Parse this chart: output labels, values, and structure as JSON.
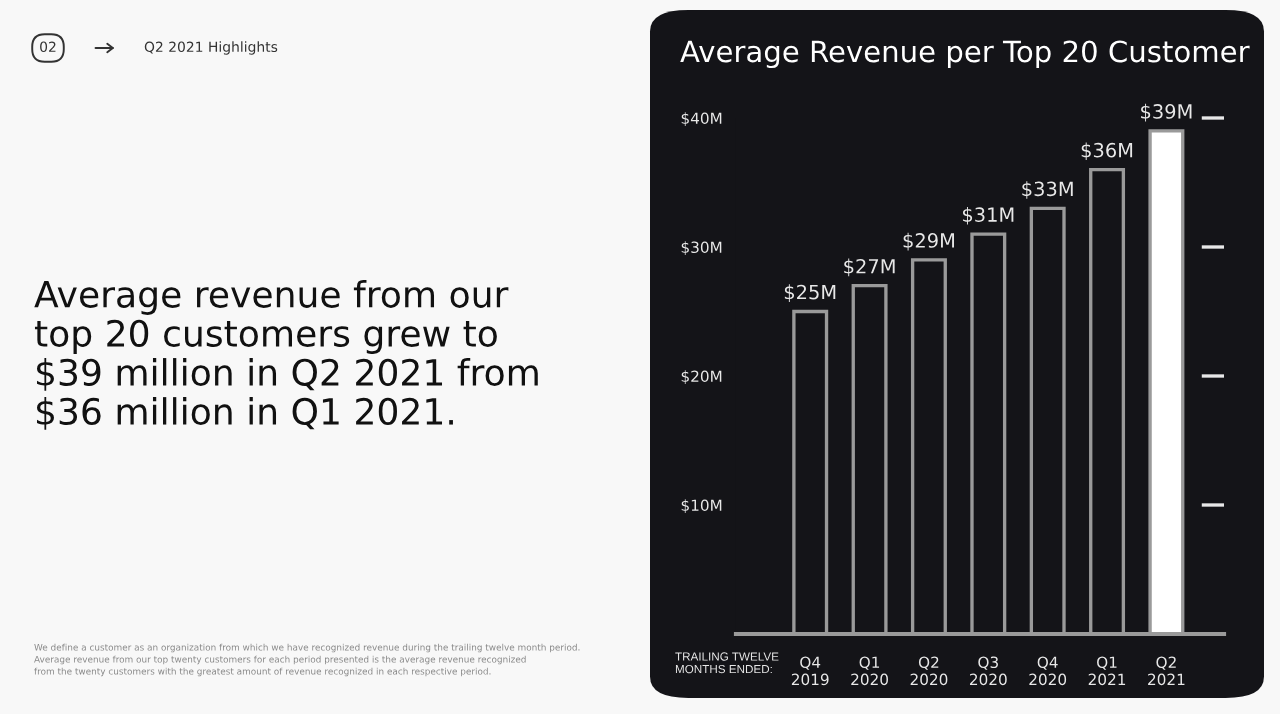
{
  "chart_data": {
    "type": "bar",
    "title": "Average Revenue per Top 20 Customer",
    "categories": [
      "Q4\n2019",
      "Q1\n2020",
      "Q2\n2020",
      "Q3\n2020",
      "Q4\n2020",
      "Q1\n2021",
      "Q2\n2021"
    ],
    "values": [
      25,
      27,
      29,
      31,
      33,
      36,
      39
    ],
    "colors": [
      "#141418",
      "#141418",
      "#141418",
      "#141418",
      "#141418",
      "#141418",
      "#ffffff"
    ],
    "value_labels": [
      "$25M",
      "$27M",
      "$29M",
      "$31M",
      "$33M",
      "$36M",
      "$39M"
    ],
    "xlabel": "TRAILING TWELVE\nMONTHS ENDED:",
    "ylim": [
      0,
      40
    ],
    "yticks": [
      {
        "value": 10,
        "label": "$10M"
      },
      {
        "value": 20,
        "label": "$20M"
      },
      {
        "value": 30,
        "label": "$30M"
      },
      {
        "value": 40,
        "label": "$40M"
      }
    ],
    "grid": false,
    "legend": false,
    "annotations": [
      "02",
      "Q2 2021 Highlights",
      "Average revenue from our\ntop 20 customers grew to\n$39 million in Q2 2021 from\n$36 million in Q1 2021.",
      "We define a customer as an organization from which we have recognized revenue during the trailing twelve month period.\nAverage revenue from our top twenty customers for each period presented is the average revenue recognized\nfrom the twenty customers with the greatest amount of revenue recognized in each respective period."
    ]
  }
}
